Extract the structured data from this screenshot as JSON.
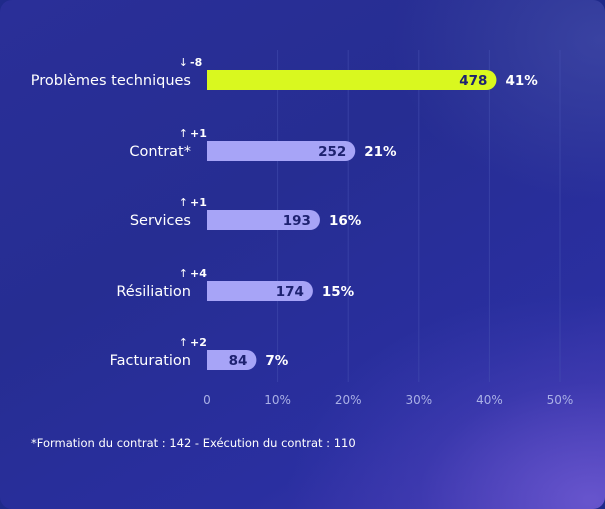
{
  "chart_data": {
    "type": "bar",
    "orientation": "horizontal",
    "categories": [
      "Problèmes techniques",
      "Contrat*",
      "Services",
      "Résiliation",
      "Facturation"
    ],
    "values": [
      478,
      252,
      193,
      174,
      84
    ],
    "percent_labels": [
      "41%",
      "21%",
      "16%",
      "15%",
      "7%"
    ],
    "percent_values": [
      41,
      21,
      16,
      15,
      7
    ],
    "changes": [
      {
        "direction": "down",
        "arrow": "↓",
        "label": "-8"
      },
      {
        "direction": "up",
        "arrow": "↑",
        "label": "+1"
      },
      {
        "direction": "up",
        "arrow": "↑",
        "label": "+1"
      },
      {
        "direction": "up",
        "arrow": "↑",
        "label": "+4"
      },
      {
        "direction": "up",
        "arrow": "↑",
        "label": "+2"
      }
    ],
    "x_ticks": [
      "0",
      "10%",
      "20%",
      "30%",
      "40%",
      "50%"
    ],
    "xlim": [
      0,
      50
    ],
    "grid": true,
    "colors": {
      "highlight_bar": "#d9f81f",
      "bar": "#a7a4f7",
      "bar_value_text": "#1e2270",
      "text": "#ffffff",
      "tick_text": "#aab0e6",
      "grid": "#4650b0"
    }
  },
  "footnote": "*Formation du contrat : 142 - Exécution du contrat : 110"
}
